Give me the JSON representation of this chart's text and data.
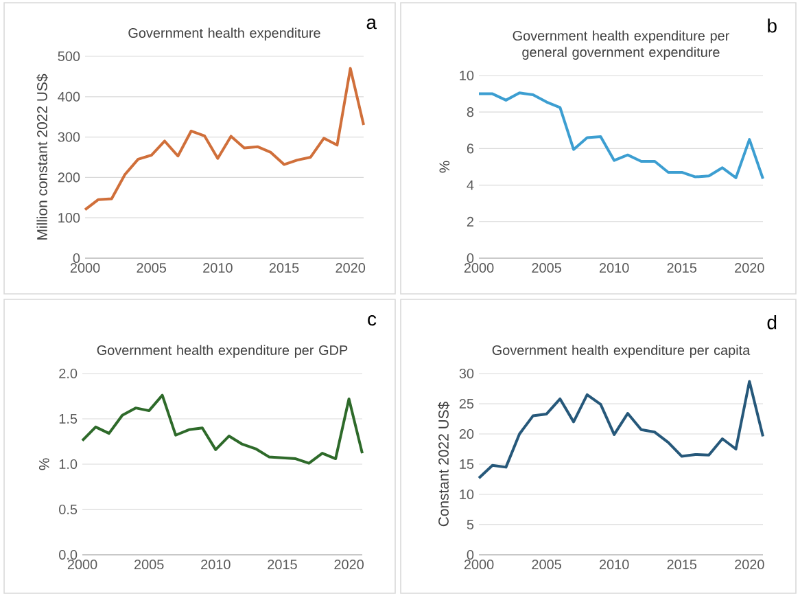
{
  "chart_data": [
    {
      "type": "line",
      "title": "Government health expenditure",
      "ylabel": "Million constant 2022 US$",
      "annotations": [
        "a"
      ],
      "x": [
        2000,
        2001,
        2002,
        2003,
        2004,
        2005,
        2006,
        2007,
        2008,
        2009,
        2010,
        2011,
        2012,
        2013,
        2014,
        2015,
        2016,
        2017,
        2018,
        2019,
        2020,
        2021
      ],
      "xlim": [
        2000,
        2021
      ],
      "xticks": [
        2000,
        2005,
        2010,
        2015,
        2020
      ],
      "ylim": [
        0,
        500
      ],
      "yticks": [
        0,
        100,
        200,
        300,
        400,
        500
      ],
      "grid": "y",
      "series": [
        {
          "color": "#d06f3a",
          "values": [
            120,
            145,
            147,
            207,
            245,
            255,
            290,
            253,
            315,
            303,
            247,
            302,
            273,
            276,
            262,
            232,
            243,
            250,
            297,
            280,
            470,
            330
          ]
        }
      ]
    },
    {
      "type": "line",
      "title": "Government health expenditure per general government expenditure",
      "ylabel": "%",
      "annotations": [
        "b"
      ],
      "x": [
        2000,
        2001,
        2002,
        2003,
        2004,
        2005,
        2006,
        2007,
        2008,
        2009,
        2010,
        2011,
        2012,
        2013,
        2014,
        2015,
        2016,
        2017,
        2018,
        2019,
        2020,
        2021
      ],
      "xlim": [
        2000,
        2021
      ],
      "xticks": [
        2000,
        2005,
        2010,
        2015,
        2020
      ],
      "ylim": [
        0,
        10
      ],
      "yticks": [
        0,
        2,
        4,
        6,
        8,
        10
      ],
      "grid": "y",
      "series": [
        {
          "color": "#3c9ed1",
          "values": [
            9.0,
            9.0,
            8.65,
            9.05,
            8.95,
            8.55,
            8.25,
            5.95,
            6.6,
            6.65,
            5.35,
            5.65,
            5.3,
            5.3,
            4.7,
            4.7,
            4.45,
            4.5,
            4.95,
            4.4,
            6.5,
            4.35
          ]
        }
      ]
    },
    {
      "type": "line",
      "title": "Government health expenditure per GDP",
      "ylabel": "%",
      "annotations": [
        "c"
      ],
      "x": [
        2000,
        2001,
        2002,
        2003,
        2004,
        2005,
        2006,
        2007,
        2008,
        2009,
        2010,
        2011,
        2012,
        2013,
        2014,
        2015,
        2016,
        2017,
        2018,
        2019,
        2020,
        2021
      ],
      "xlim": [
        2000,
        2021
      ],
      "xticks": [
        2000,
        2005,
        2010,
        2015,
        2020
      ],
      "ylim": [
        0,
        2
      ],
      "yticks": [
        {
          "value": 0,
          "label": "0.0"
        },
        0.5,
        {
          "value": 1,
          "label": "1.0"
        },
        1.5,
        {
          "value": 2,
          "label": "2.0"
        }
      ],
      "grid": "y",
      "series": [
        {
          "color": "#2e6a2a",
          "values": [
            1.26,
            1.41,
            1.34,
            1.54,
            1.62,
            1.59,
            1.76,
            1.32,
            1.38,
            1.4,
            1.16,
            1.31,
            1.22,
            1.17,
            1.08,
            1.07,
            1.06,
            1.01,
            1.12,
            1.06,
            1.72,
            1.12
          ]
        }
      ]
    },
    {
      "type": "line",
      "title": "Government health expenditure per capita",
      "ylabel": "Constant 2022 US$",
      "annotations": [
        "d"
      ],
      "x": [
        2000,
        2001,
        2002,
        2003,
        2004,
        2005,
        2006,
        2007,
        2008,
        2009,
        2010,
        2011,
        2012,
        2013,
        2014,
        2015,
        2016,
        2017,
        2018,
        2019,
        2020,
        2021
      ],
      "xlim": [
        2000,
        2021
      ],
      "xticks": [
        2000,
        2005,
        2010,
        2015,
        2020
      ],
      "ylim": [
        0,
        30
      ],
      "yticks": [
        0,
        5,
        10,
        15,
        20,
        25,
        30
      ],
      "grid": "y",
      "series": [
        {
          "color": "#26587a",
          "values": [
            12.7,
            14.8,
            14.5,
            20,
            23,
            23.3,
            25.8,
            22,
            26.5,
            24.9,
            19.9,
            23.4,
            20.7,
            20.3,
            18.6,
            16.3,
            16.6,
            16.5,
            19.2,
            17.5,
            28.7,
            19.6
          ]
        }
      ]
    }
  ]
}
